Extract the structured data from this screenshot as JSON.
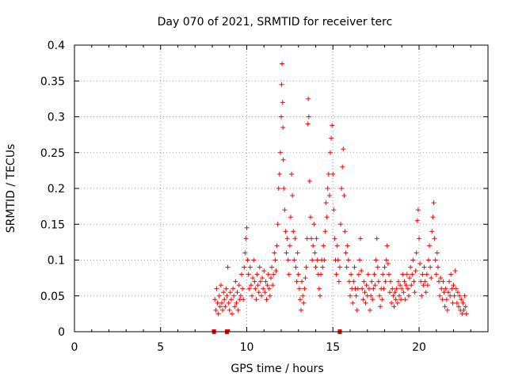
{
  "chart_data": {
    "type": "scatter",
    "title": "Day 070 of 2021, SRMTID for receiver terc",
    "xlabel": "GPS time / hours",
    "ylabel": "SRMTID / TECUs",
    "xlim": [
      0,
      24
    ],
    "ylim": [
      0,
      0.4
    ],
    "xticks": [
      "0",
      "5",
      "10",
      "15",
      "20"
    ],
    "yticks": [
      "0",
      "0.05",
      "0.1",
      "0.15",
      "0.2",
      "0.25",
      "0.3",
      "0.35",
      "0.4"
    ],
    "grid": true,
    "marker": "plus",
    "color": "#ff0000",
    "series": [
      {
        "points": [
          [
            8.15,
            0.045
          ],
          [
            8.2,
            0.03
          ],
          [
            8.25,
            0.06
          ],
          [
            8.3,
            0.04
          ],
          [
            8.35,
            0.025
          ],
          [
            8.4,
            0.05
          ],
          [
            8.45,
            0.035
          ],
          [
            8.5,
            0.065
          ],
          [
            8.55,
            0.04
          ],
          [
            8.6,
            0.03
          ],
          [
            8.65,
            0.055
          ],
          [
            8.7,
            0.045
          ],
          [
            8.75,
            0.035
          ],
          [
            8.8,
            0.06
          ],
          [
            8.85,
            0.05
          ],
          [
            8.9,
            0.09
          ],
          [
            8.95,
            0.04
          ],
          [
            9.0,
            0.03
          ],
          [
            9.05,
            0.055
          ],
          [
            9.1,
            0.045
          ],
          [
            9.15,
            0.025
          ],
          [
            9.2,
            0.06
          ],
          [
            9.25,
            0.05
          ],
          [
            9.3,
            0.035
          ],
          [
            9.35,
            0.07
          ],
          [
            9.4,
            0.04
          ],
          [
            9.45,
            0.055
          ],
          [
            9.5,
            0.03
          ],
          [
            9.55,
            0.065
          ],
          [
            9.6,
            0.045
          ],
          [
            9.65,
            0.05
          ],
          [
            9.7,
            0.08
          ],
          [
            9.75,
            0.06
          ],
          [
            9.8,
            0.045
          ],
          [
            9.85,
            0.09
          ],
          [
            9.9,
            0.11
          ],
          [
            9.95,
            0.13
          ],
          [
            10.0,
            0.145
          ],
          [
            10.05,
            0.1
          ],
          [
            10.1,
            0.08
          ],
          [
            10.15,
            0.06
          ],
          [
            10.2,
            0.09
          ],
          [
            10.25,
            0.065
          ],
          [
            10.3,
            0.05
          ],
          [
            10.35,
            0.075
          ],
          [
            10.4,
            0.1
          ],
          [
            10.45,
            0.07
          ],
          [
            10.5,
            0.06
          ],
          [
            10.55,
            0.045
          ],
          [
            10.6,
            0.08
          ],
          [
            10.65,
            0.065
          ],
          [
            10.7,
            0.055
          ],
          [
            10.75,
            0.09
          ],
          [
            10.8,
            0.07
          ],
          [
            10.85,
            0.05
          ],
          [
            10.9,
            0.075
          ],
          [
            10.95,
            0.06
          ],
          [
            11.0,
            0.085
          ],
          [
            11.05,
            0.055
          ],
          [
            11.1,
            0.07
          ],
          [
            11.15,
            0.045
          ],
          [
            11.2,
            0.065
          ],
          [
            11.25,
            0.08
          ],
          [
            11.3,
            0.06
          ],
          [
            11.35,
            0.05
          ],
          [
            11.4,
            0.075
          ],
          [
            11.45,
            0.09
          ],
          [
            11.5,
            0.065
          ],
          [
            11.55,
            0.08
          ],
          [
            11.6,
            0.11
          ],
          [
            11.65,
            0.1
          ],
          [
            11.7,
            0.085
          ],
          [
            11.75,
            0.12
          ],
          [
            11.8,
            0.15
          ],
          [
            11.85,
            0.2
          ],
          [
            11.9,
            0.22
          ],
          [
            11.95,
            0.25
          ],
          [
            12.0,
            0.3
          ],
          [
            12.02,
            0.345
          ],
          [
            12.05,
            0.374
          ],
          [
            12.08,
            0.32
          ],
          [
            12.1,
            0.285
          ],
          [
            12.12,
            0.24
          ],
          [
            12.15,
            0.2
          ],
          [
            12.2,
            0.17
          ],
          [
            12.25,
            0.14
          ],
          [
            12.3,
            0.11
          ],
          [
            12.35,
            0.13
          ],
          [
            12.4,
            0.1
          ],
          [
            12.45,
            0.08
          ],
          [
            12.5,
            0.12
          ],
          [
            12.55,
            0.16
          ],
          [
            12.6,
            0.22
          ],
          [
            12.65,
            0.19
          ],
          [
            12.7,
            0.14
          ],
          [
            12.75,
            0.1
          ],
          [
            12.8,
            0.13
          ],
          [
            12.85,
            0.09
          ],
          [
            12.9,
            0.07
          ],
          [
            12.95,
            0.11
          ],
          [
            13.0,
            0.08
          ],
          [
            13.05,
            0.06
          ],
          [
            13.1,
            0.045
          ],
          [
            13.15,
            0.03
          ],
          [
            13.2,
            0.07
          ],
          [
            13.25,
            0.05
          ],
          [
            13.3,
            0.04
          ],
          [
            13.35,
            0.06
          ],
          [
            13.4,
            0.075
          ],
          [
            13.45,
            0.09
          ],
          [
            13.5,
            0.13
          ],
          [
            13.55,
            0.29
          ],
          [
            13.57,
            0.325
          ],
          [
            13.6,
            0.3
          ],
          [
            13.65,
            0.21
          ],
          [
            13.7,
            0.16
          ],
          [
            13.75,
            0.13
          ],
          [
            13.8,
            0.1
          ],
          [
            13.85,
            0.12
          ],
          [
            13.9,
            0.15
          ],
          [
            13.95,
            0.11
          ],
          [
            14.0,
            0.09
          ],
          [
            14.05,
            0.13
          ],
          [
            14.1,
            0.1
          ],
          [
            14.15,
            0.08
          ],
          [
            14.2,
            0.06
          ],
          [
            14.25,
            0.05
          ],
          [
            14.3,
            0.08
          ],
          [
            14.35,
            0.1
          ],
          [
            14.4,
            0.09
          ],
          [
            14.45,
            0.12
          ],
          [
            14.5,
            0.1
          ],
          [
            14.55,
            0.14
          ],
          [
            14.6,
            0.18
          ],
          [
            14.65,
            0.16
          ],
          [
            14.7,
            0.2
          ],
          [
            14.75,
            0.22
          ],
          [
            14.8,
            0.19
          ],
          [
            14.85,
            0.25
          ],
          [
            14.9,
            0.27
          ],
          [
            14.95,
            0.288
          ],
          [
            15.0,
            0.22
          ],
          [
            15.05,
            0.17
          ],
          [
            15.1,
            0.13
          ],
          [
            15.15,
            0.1
          ],
          [
            15.2,
            0.08
          ],
          [
            15.25,
            0.12
          ],
          [
            15.3,
            0.1
          ],
          [
            15.35,
            0.07
          ],
          [
            15.4,
            0.09
          ],
          [
            15.45,
            0.15
          ],
          [
            15.5,
            0.2
          ],
          [
            15.55,
            0.23
          ],
          [
            15.6,
            0.255
          ],
          [
            15.65,
            0.19
          ],
          [
            15.7,
            0.14
          ],
          [
            15.75,
            0.11
          ],
          [
            15.8,
            0.09
          ],
          [
            15.85,
            0.12
          ],
          [
            15.9,
            0.1
          ],
          [
            15.95,
            0.07
          ],
          [
            16.0,
            0.05
          ],
          [
            16.05,
            0.08
          ],
          [
            16.1,
            0.06
          ],
          [
            16.15,
            0.04
          ],
          [
            16.2,
            0.07
          ],
          [
            16.25,
            0.09
          ],
          [
            16.3,
            0.06
          ],
          [
            16.35,
            0.05
          ],
          [
            16.4,
            0.03
          ],
          [
            16.45,
            0.06
          ],
          [
            16.5,
            0.08
          ],
          [
            16.55,
            0.1
          ],
          [
            16.6,
            0.13
          ],
          [
            16.65,
            0.085
          ],
          [
            16.7,
            0.06
          ],
          [
            16.75,
            0.045
          ],
          [
            16.8,
            0.07
          ],
          [
            16.85,
            0.055
          ],
          [
            16.9,
            0.04
          ],
          [
            16.95,
            0.065
          ],
          [
            17.0,
            0.05
          ],
          [
            17.05,
            0.08
          ],
          [
            17.1,
            0.06
          ],
          [
            17.15,
            0.03
          ],
          [
            17.2,
            0.05
          ],
          [
            17.25,
            0.07
          ],
          [
            17.3,
            0.045
          ],
          [
            17.35,
            0.06
          ],
          [
            17.4,
            0.08
          ],
          [
            17.45,
            0.065
          ],
          [
            17.5,
            0.1
          ],
          [
            17.55,
            0.13
          ],
          [
            17.6,
            0.09
          ],
          [
            17.65,
            0.07
          ],
          [
            17.7,
            0.05
          ],
          [
            17.75,
            0.035
          ],
          [
            17.8,
            0.06
          ],
          [
            17.85,
            0.045
          ],
          [
            17.9,
            0.08
          ],
          [
            17.95,
            0.06
          ],
          [
            18.0,
            0.09
          ],
          [
            18.05,
            0.07
          ],
          [
            18.1,
            0.1
          ],
          [
            18.15,
            0.12
          ],
          [
            18.2,
            0.095
          ],
          [
            18.25,
            0.08
          ],
          [
            18.3,
            0.055
          ],
          [
            18.35,
            0.07
          ],
          [
            18.4,
            0.04
          ],
          [
            18.45,
            0.06
          ],
          [
            18.5,
            0.05
          ],
          [
            18.55,
            0.035
          ],
          [
            18.6,
            0.055
          ],
          [
            18.65,
            0.045
          ],
          [
            18.7,
            0.06
          ],
          [
            18.75,
            0.04
          ],
          [
            18.8,
            0.07
          ],
          [
            18.85,
            0.05
          ],
          [
            18.9,
            0.065
          ],
          [
            18.95,
            0.045
          ],
          [
            19.0,
            0.06
          ],
          [
            19.05,
            0.08
          ],
          [
            19.1,
            0.055
          ],
          [
            19.15,
            0.07
          ],
          [
            19.2,
            0.045
          ],
          [
            19.25,
            0.065
          ],
          [
            19.3,
            0.08
          ],
          [
            19.35,
            0.06
          ],
          [
            19.4,
            0.05
          ],
          [
            19.45,
            0.075
          ],
          [
            19.5,
            0.09
          ],
          [
            19.55,
            0.065
          ],
          [
            19.6,
            0.08
          ],
          [
            19.65,
            0.1
          ],
          [
            19.7,
            0.07
          ],
          [
            19.75,
            0.055
          ],
          [
            19.8,
            0.085
          ],
          [
            19.85,
            0.11
          ],
          [
            19.9,
            0.155
          ],
          [
            19.95,
            0.17
          ],
          [
            20.0,
            0.13
          ],
          [
            20.05,
            0.095
          ],
          [
            20.1,
            0.07
          ],
          [
            20.15,
            0.05
          ],
          [
            20.2,
            0.08
          ],
          [
            20.25,
            0.065
          ],
          [
            20.3,
            0.09
          ],
          [
            20.35,
            0.07
          ],
          [
            20.4,
            0.055
          ],
          [
            20.45,
            0.08
          ],
          [
            20.5,
            0.065
          ],
          [
            20.55,
            0.1
          ],
          [
            20.6,
            0.12
          ],
          [
            20.65,
            0.09
          ],
          [
            20.7,
            0.075
          ],
          [
            20.75,
            0.14
          ],
          [
            20.8,
            0.16
          ],
          [
            20.85,
            0.18
          ],
          [
            20.9,
            0.13
          ],
          [
            20.95,
            0.1
          ],
          [
            21.0,
            0.08
          ],
          [
            21.05,
            0.11
          ],
          [
            21.1,
            0.09
          ],
          [
            21.15,
            0.07
          ],
          [
            21.2,
            0.05
          ],
          [
            21.25,
            0.075
          ],
          [
            21.3,
            0.06
          ],
          [
            21.35,
            0.045
          ],
          [
            21.4,
            0.07
          ],
          [
            21.45,
            0.055
          ],
          [
            21.5,
            0.035
          ],
          [
            21.55,
            0.06
          ],
          [
            21.6,
            0.045
          ],
          [
            21.65,
            0.03
          ],
          [
            21.7,
            0.055
          ],
          [
            21.75,
            0.07
          ],
          [
            21.8,
            0.05
          ],
          [
            21.85,
            0.08
          ],
          [
            21.9,
            0.06
          ],
          [
            21.95,
            0.04
          ],
          [
            22.0,
            0.065
          ],
          [
            22.05,
            0.05
          ],
          [
            22.1,
            0.085
          ],
          [
            22.15,
            0.06
          ],
          [
            22.2,
            0.04
          ],
          [
            22.25,
            0.055
          ],
          [
            22.3,
            0.035
          ],
          [
            22.35,
            0.05
          ],
          [
            22.4,
            0.03
          ],
          [
            22.45,
            0.045
          ],
          [
            22.5,
            0.025
          ],
          [
            22.55,
            0.04
          ],
          [
            22.6,
            0.03
          ],
          [
            22.65,
            0.05
          ],
          [
            22.7,
            0.035
          ],
          [
            22.75,
            0.025
          ]
        ]
      },
      {
        "marker": "square",
        "points": [
          [
            8.1,
            0
          ],
          [
            8.85,
            0
          ],
          [
            15.4,
            0
          ]
        ]
      }
    ]
  }
}
